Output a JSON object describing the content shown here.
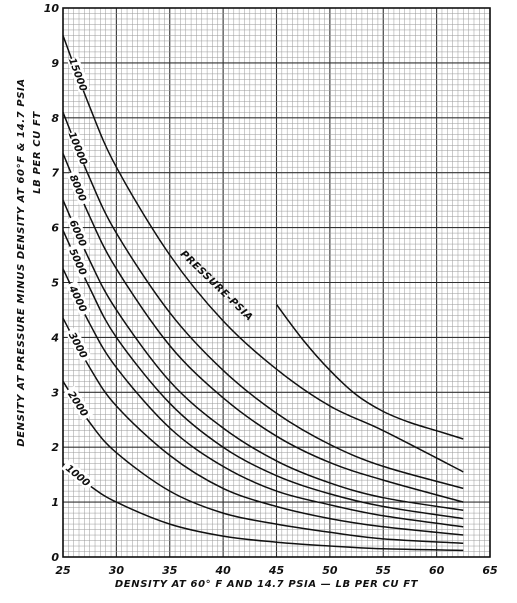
{
  "chart_data": {
    "type": "line",
    "title": "",
    "xlabel": "DENSITY AT 60° F AND 14.7 PSIA — LB PER CU FT",
    "ylabel": "DENSITY AT PRESSURE MINUS DENSITY AT 60°F & 14.7 PSIA",
    "ylabel2": "LB PER CU FT",
    "xlim": [
      25,
      65
    ],
    "ylim": [
      0,
      10
    ],
    "x_ticks": [
      "25",
      "30",
      "35",
      "40",
      "45",
      "50",
      "55",
      "60",
      "65"
    ],
    "y_ticks": [
      "0",
      "1",
      "2",
      "3",
      "4",
      "5",
      "6",
      "7",
      "8",
      "9",
      "10"
    ],
    "grid": true,
    "legend_title": "PRESSURE-PSIA",
    "series": [
      {
        "name": "1000",
        "x": [
          25,
          27.5,
          30,
          35,
          40,
          45,
          50,
          55,
          62.5
        ],
        "y": [
          1.7,
          1.3,
          1.0,
          0.6,
          0.38,
          0.27,
          0.2,
          0.15,
          0.12
        ]
      },
      {
        "name": "2000",
        "x": [
          25,
          27.5,
          30,
          35,
          40,
          45,
          50,
          55,
          62.5
        ],
        "y": [
          3.2,
          2.45,
          1.9,
          1.2,
          0.8,
          0.6,
          0.45,
          0.33,
          0.25
        ]
      },
      {
        "name": "3000",
        "x": [
          25,
          27.5,
          30,
          35,
          40,
          45,
          50,
          55,
          62.5
        ],
        "y": [
          4.35,
          3.45,
          2.75,
          1.85,
          1.25,
          0.92,
          0.7,
          0.55,
          0.4
        ]
      },
      {
        "name": "4000",
        "x": [
          25,
          27.5,
          30,
          35,
          40,
          45,
          50,
          55,
          62.5
        ],
        "y": [
          5.25,
          4.25,
          3.45,
          2.35,
          1.65,
          1.2,
          0.95,
          0.75,
          0.55
        ]
      },
      {
        "name": "5000",
        "x": [
          25,
          27.5,
          30,
          35,
          40,
          45,
          50,
          55,
          62.5
        ],
        "y": [
          5.95,
          4.9,
          4.0,
          2.8,
          2.0,
          1.48,
          1.15,
          0.92,
          0.7
        ]
      },
      {
        "name": "6000",
        "x": [
          25,
          27.5,
          30,
          35,
          40,
          45,
          50,
          55,
          62.5
        ],
        "y": [
          6.5,
          5.4,
          4.5,
          3.2,
          2.35,
          1.75,
          1.35,
          1.08,
          0.85
        ]
      },
      {
        "name": "8000",
        "x": [
          25,
          27.5,
          30,
          35,
          40,
          45,
          50,
          55,
          62.5
        ],
        "y": [
          7.35,
          6.2,
          5.25,
          3.85,
          2.9,
          2.2,
          1.72,
          1.4,
          1.0
        ]
      },
      {
        "name": "10000",
        "x": [
          25,
          27.5,
          30,
          35,
          40,
          45,
          50,
          55,
          62.5
        ],
        "y": [
          8.1,
          6.9,
          5.9,
          4.45,
          3.4,
          2.62,
          2.05,
          1.65,
          1.25
        ]
      },
      {
        "name": "15000",
        "x": [
          25,
          27.5,
          30,
          35,
          40,
          45,
          50,
          55,
          62.5
        ],
        "y": [
          9.5,
          8.2,
          7.1,
          5.5,
          4.3,
          3.42,
          2.75,
          2.3,
          1.55
        ]
      },
      {
        "name": "",
        "x": [
          45,
          47.5,
          50,
          52.5,
          55,
          57.5,
          60,
          62.5
        ],
        "y": [
          4.6,
          3.95,
          3.4,
          2.95,
          2.65,
          2.45,
          2.3,
          2.15
        ]
      }
    ]
  }
}
